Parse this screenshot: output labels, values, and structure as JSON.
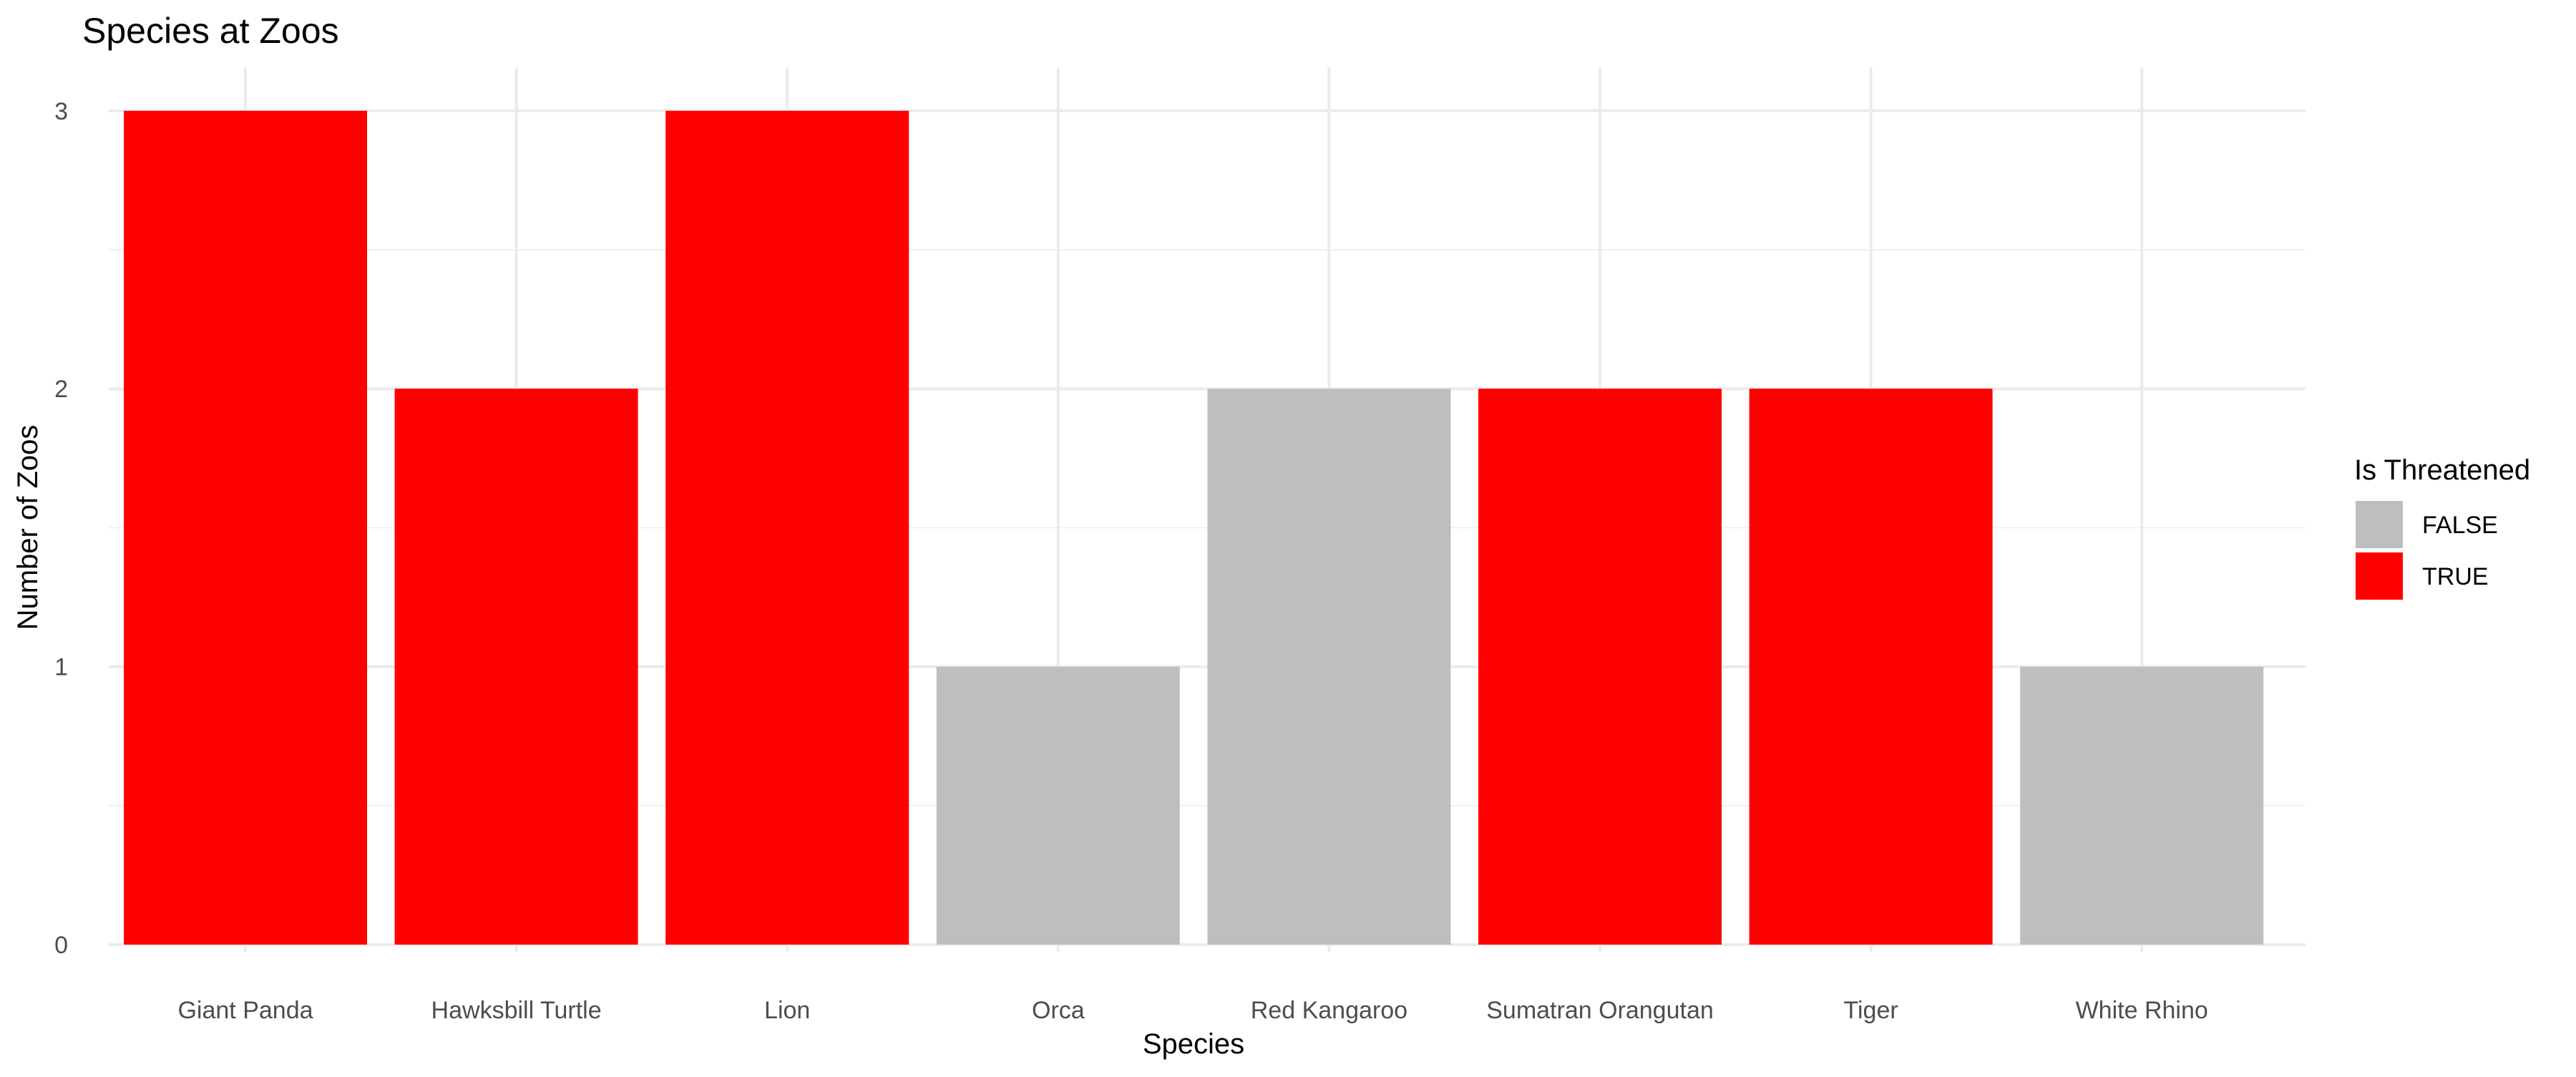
{
  "chart_data": {
    "type": "bar",
    "title": "Species at Zoos",
    "xlabel": "Species",
    "ylabel": "Number of Zoos",
    "categories": [
      "Giant Panda",
      "Hawksbill Turtle",
      "Lion",
      "Orca",
      "Red Kangaroo",
      "Sumatran Orangutan",
      "Tiger",
      "White Rhino"
    ],
    "values": [
      3,
      2,
      3,
      1,
      2,
      2,
      2,
      1
    ],
    "fill_group": [
      "TRUE",
      "TRUE",
      "TRUE",
      "FALSE",
      "FALSE",
      "TRUE",
      "TRUE",
      "FALSE"
    ],
    "ylim": [
      0,
      3.15
    ],
    "yticks": [
      "0",
      "1",
      "2",
      "3"
    ],
    "grid": true,
    "legend": {
      "title": "Is Threatened",
      "position": "right",
      "entries": [
        {
          "label": "FALSE",
          "color": "#bebebe"
        },
        {
          "label": "TRUE",
          "color": "#ff0000"
        }
      ]
    }
  }
}
